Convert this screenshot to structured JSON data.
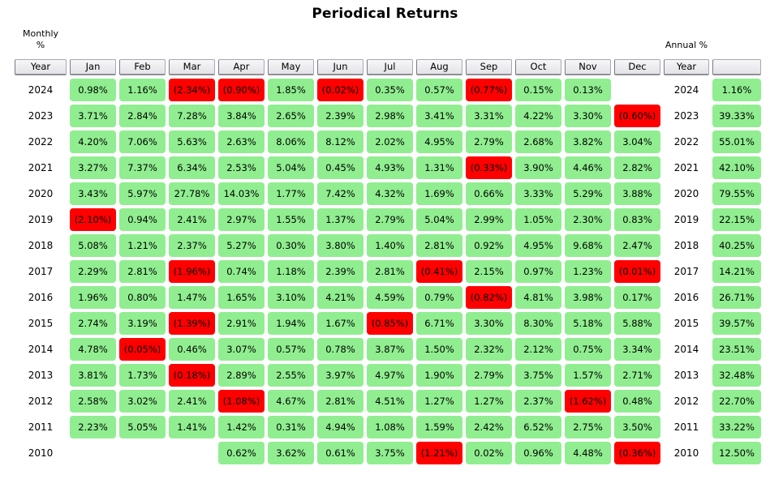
{
  "title": "Periodical Returns",
  "corner_labels": {
    "monthly_line1": "Monthly",
    "monthly_line2": "%",
    "annual": "Annual %"
  },
  "chart_data": {
    "type": "table",
    "title": "Periodical Returns",
    "left_section_label": "Monthly %",
    "right_section_label": "Annual %",
    "negative_format": "parentheses",
    "colors": {
      "positive_bg": "#90EE90",
      "negative_bg": "#FF0000",
      "header_bg": "#ECECEC"
    },
    "header_display": [
      "Year",
      "Jan",
      "Feb",
      "Mar",
      "Apr",
      "May",
      "Jun",
      "Jul",
      "Aug",
      "Sep",
      "Oct",
      "Nov",
      "Dec",
      "Year",
      ""
    ],
    "months": [
      "Jan",
      "Feb",
      "Mar",
      "Apr",
      "May",
      "Jun",
      "Jul",
      "Aug",
      "Sep",
      "Oct",
      "Nov",
      "Dec"
    ],
    "rows": [
      {
        "year": "2024",
        "monthly": [
          "0.98%",
          "1.16%",
          "(2.34%)",
          "(0.90%)",
          "1.85%",
          "(0.02%)",
          "0.35%",
          "0.57%",
          "(0.77%)",
          "0.15%",
          "0.13%",
          ""
        ],
        "annual": "1.16%"
      },
      {
        "year": "2023",
        "monthly": [
          "3.71%",
          "2.84%",
          "7.28%",
          "3.84%",
          "2.65%",
          "2.39%",
          "2.98%",
          "3.41%",
          "3.31%",
          "4.22%",
          "3.30%",
          "(0.60%)"
        ],
        "annual": "39.33%"
      },
      {
        "year": "2022",
        "monthly": [
          "4.20%",
          "7.06%",
          "5.63%",
          "2.63%",
          "8.06%",
          "8.12%",
          "2.02%",
          "4.95%",
          "2.79%",
          "2.68%",
          "3.82%",
          "3.04%"
        ],
        "annual": "55.01%"
      },
      {
        "year": "2021",
        "monthly": [
          "3.27%",
          "7.37%",
          "6.34%",
          "2.53%",
          "5.04%",
          "0.45%",
          "4.93%",
          "1.31%",
          "(0.33%)",
          "3.90%",
          "4.46%",
          "2.82%"
        ],
        "annual": "42.10%"
      },
      {
        "year": "2020",
        "monthly": [
          "3.43%",
          "5.97%",
          "27.78%",
          "14.03%",
          "1.77%",
          "7.42%",
          "4.32%",
          "1.69%",
          "0.66%",
          "3.33%",
          "5.29%",
          "3.88%"
        ],
        "annual": "79.55%"
      },
      {
        "year": "2019",
        "monthly": [
          "(2.10%)",
          "0.94%",
          "2.41%",
          "2.97%",
          "1.55%",
          "1.37%",
          "2.79%",
          "5.04%",
          "2.99%",
          "1.05%",
          "2.30%",
          "0.83%"
        ],
        "annual": "22.15%"
      },
      {
        "year": "2018",
        "monthly": [
          "5.08%",
          "1.21%",
          "2.37%",
          "5.27%",
          "0.30%",
          "3.80%",
          "1.40%",
          "2.81%",
          "0.92%",
          "4.95%",
          "9.68%",
          "2.47%"
        ],
        "annual": "40.25%"
      },
      {
        "year": "2017",
        "monthly": [
          "2.29%",
          "2.81%",
          "(1.96%)",
          "0.74%",
          "1.18%",
          "2.39%",
          "2.81%",
          "(0.41%)",
          "2.15%",
          "0.97%",
          "1.23%",
          "(0.01%)"
        ],
        "annual": "14.21%"
      },
      {
        "year": "2016",
        "monthly": [
          "1.96%",
          "0.80%",
          "1.47%",
          "1.65%",
          "3.10%",
          "4.21%",
          "4.59%",
          "0.79%",
          "(0.82%)",
          "4.81%",
          "3.98%",
          "0.17%"
        ],
        "annual": "26.71%"
      },
      {
        "year": "2015",
        "monthly": [
          "2.74%",
          "3.19%",
          "(1.39%)",
          "2.91%",
          "1.94%",
          "1.67%",
          "(0.85%)",
          "6.71%",
          "3.30%",
          "8.30%",
          "5.18%",
          "5.88%"
        ],
        "annual": "39.57%"
      },
      {
        "year": "2014",
        "monthly": [
          "4.78%",
          "(0.05%)",
          "0.46%",
          "3.07%",
          "0.57%",
          "0.78%",
          "3.87%",
          "1.50%",
          "2.32%",
          "2.12%",
          "0.75%",
          "3.34%"
        ],
        "annual": "23.51%"
      },
      {
        "year": "2013",
        "monthly": [
          "3.81%",
          "1.73%",
          "(0.18%)",
          "2.89%",
          "2.55%",
          "3.97%",
          "4.97%",
          "1.90%",
          "2.79%",
          "3.75%",
          "1.57%",
          "2.71%"
        ],
        "annual": "32.48%"
      },
      {
        "year": "2012",
        "monthly": [
          "2.58%",
          "3.02%",
          "2.41%",
          "(1.08%)",
          "4.67%",
          "2.81%",
          "4.51%",
          "1.27%",
          "1.27%",
          "2.37%",
          "(1.62%)",
          "0.48%"
        ],
        "annual": "22.70%"
      },
      {
        "year": "2011",
        "monthly": [
          "2.23%",
          "5.05%",
          "1.41%",
          "1.42%",
          "0.31%",
          "4.94%",
          "1.08%",
          "1.59%",
          "2.42%",
          "6.52%",
          "2.75%",
          "3.50%"
        ],
        "annual": "33.22%"
      },
      {
        "year": "2010",
        "monthly": [
          "",
          "",
          "",
          "0.62%",
          "3.62%",
          "0.61%",
          "3.75%",
          "(1.21%)",
          "0.02%",
          "0.96%",
          "4.48%",
          "(0.36%)"
        ],
        "annual": "12.50%"
      }
    ]
  }
}
